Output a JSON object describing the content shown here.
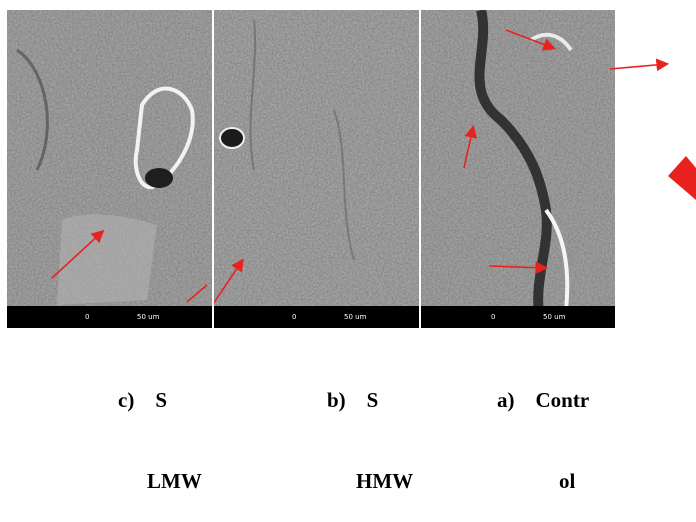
{
  "panels": [
    {
      "id": "c",
      "caption_line1": "c)    S",
      "caption_line2": "LMW",
      "scale_labels": [
        "0",
        "50 um"
      ]
    },
    {
      "id": "b",
      "caption_line1": "b)    S",
      "caption_line2": "HMW",
      "scale_labels": [
        "0",
        "50 um"
      ]
    },
    {
      "id": "a",
      "caption_line1": "a)    Contr",
      "caption_line2": "ol",
      "scale_labels": [
        "0",
        "50 um"
      ]
    }
  ],
  "colors": {
    "arrow": "#e8231f",
    "scalebar_bg": "#000000"
  },
  "icons": [
    "red-arrow-icon",
    "red-arrowhead-icon"
  ]
}
